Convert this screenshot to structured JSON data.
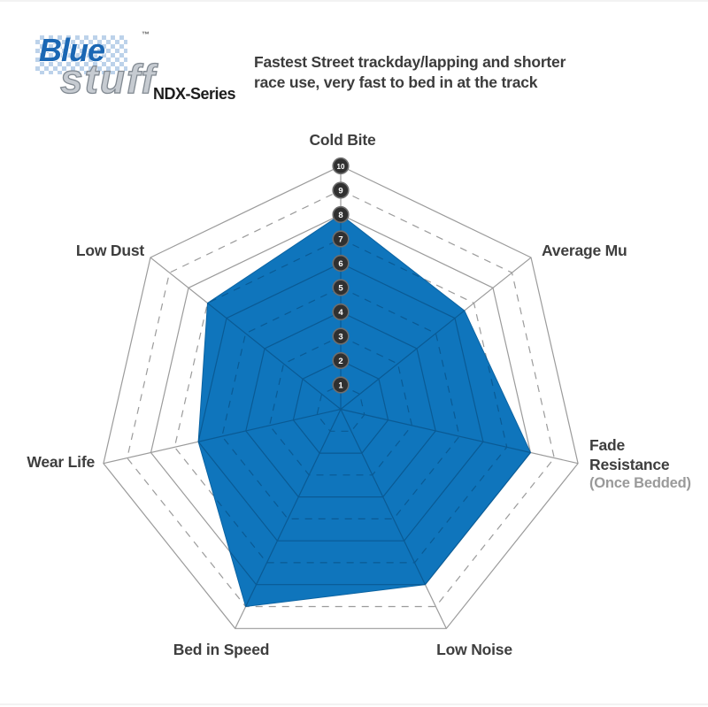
{
  "logo": {
    "brand_top": "Blue",
    "trademark": "™",
    "brand_bottom": "stuff",
    "series": "NDX-Series"
  },
  "header": {
    "line1": "Fastest Street trackday/lapping and shorter",
    "line2": "race use, very fast to bed in at the track"
  },
  "labels": {
    "cold_bite": "Cold Bite",
    "average_mu": "Average Mu",
    "fade_line1": "Fade",
    "fade_line2": "Resistance",
    "fade_line3": "(Once Bedded)",
    "low_noise": "Low Noise",
    "bed_in_speed": "Bed in Speed",
    "wear_life": "Wear Life",
    "low_dust": "Low Dust"
  },
  "chart_data": {
    "type": "radar",
    "title": "Bluestuff NDX-Series brake pad performance",
    "categories": [
      "Cold Bite",
      "Average Mu",
      "Fade Resistance (Once Bedded)",
      "Low Noise",
      "Bed in Speed",
      "Wear Life",
      "Low Dust"
    ],
    "values": [
      8,
      6.5,
      8,
      8,
      9,
      6,
      7
    ],
    "scale": {
      "min": 0,
      "max": 10,
      "tick_labels": [
        "1",
        "2",
        "3",
        "4",
        "5",
        "6",
        "7",
        "8",
        "9",
        "10"
      ]
    },
    "grid": {
      "rings": 10,
      "even_rings": "solid",
      "odd_rings": "dashed",
      "spokes": 7,
      "legend": "none"
    },
    "colors": {
      "fill": "#0f75bc",
      "fill_edge": "#0b63a2",
      "grid": "#9b9b9b",
      "grid_inside": "#0a5a94",
      "marker_bg": "#303030",
      "marker_border": "#6e6e6e",
      "marker_text": "#ffffff",
      "label": "#3e3e3e",
      "sub_label": "#9a9a9a"
    }
  }
}
